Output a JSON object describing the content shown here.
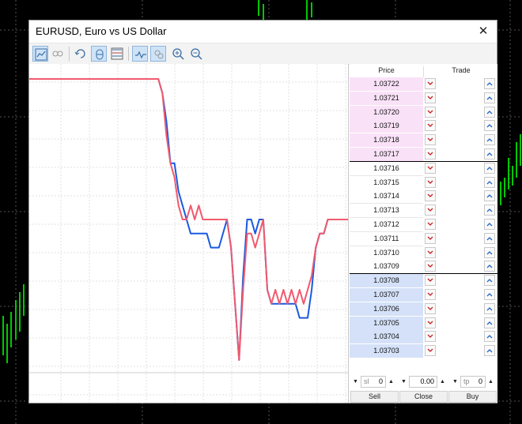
{
  "window": {
    "title": "EURUSD, Euro vs US Dollar",
    "close_glyph": "✕"
  },
  "toolbar": {
    "buttons": [
      {
        "name": "chart-icon",
        "active": true
      },
      {
        "name": "one-click-trading-icon",
        "active": false
      },
      {
        "name": "refresh-icon",
        "active": false
      },
      {
        "name": "auto-scroll-icon",
        "active": true
      },
      {
        "name": "depth-of-market-icon",
        "active": false
      },
      {
        "name": "tick-chart-icon",
        "active": true
      },
      {
        "name": "link-icon",
        "active": true
      },
      {
        "name": "zoom-in-icon",
        "active": false
      },
      {
        "name": "zoom-out-icon",
        "active": false
      }
    ]
  },
  "ladder": {
    "headers": {
      "price": "Price",
      "trade": "Trade"
    },
    "rows": [
      {
        "price": "1.03722",
        "side": "ask"
      },
      {
        "price": "1.03721",
        "side": "ask"
      },
      {
        "price": "1.03720",
        "side": "ask"
      },
      {
        "price": "1.03719",
        "side": "ask"
      },
      {
        "price": "1.03718",
        "side": "ask"
      },
      {
        "price": "1.03717",
        "side": "ask"
      },
      {
        "price": "1.03716",
        "side": "mid"
      },
      {
        "price": "1.03715",
        "side": "mid"
      },
      {
        "price": "1.03714",
        "side": "mid"
      },
      {
        "price": "1.03713",
        "side": "mid"
      },
      {
        "price": "1.03712",
        "side": "mid"
      },
      {
        "price": "1.03711",
        "side": "mid"
      },
      {
        "price": "1.03710",
        "side": "mid"
      },
      {
        "price": "1.03709",
        "side": "mid"
      },
      {
        "price": "1.03708",
        "side": "bid"
      },
      {
        "price": "1.03707",
        "side": "bid"
      },
      {
        "price": "1.03706",
        "side": "bid"
      },
      {
        "price": "1.03705",
        "side": "bid"
      },
      {
        "price": "1.03704",
        "side": "bid"
      },
      {
        "price": "1.03703",
        "side": "bid"
      }
    ]
  },
  "order": {
    "sl_label": "sl",
    "sl_value": "0",
    "volume_value": "0.00",
    "tp_label": "tp",
    "tp_value": "0",
    "sell_label": "Sell",
    "close_label": "Close",
    "buy_label": "Buy"
  },
  "colors": {
    "ask_bg": "#f9e1f7",
    "bid_bg": "#d4e1f8",
    "ask_line": "#f05a6e",
    "bid_line": "#1a5ae0",
    "dn_arrow": "#c81e1e",
    "up_arrow": "#1e64c8"
  },
  "chart_data": {
    "type": "line",
    "series": [
      {
        "values": [
          1.03722,
          1.03722,
          1.03722,
          1.03722,
          1.03722,
          1.03722,
          1.03722,
          1.03722,
          1.03722,
          1.03722,
          1.03722,
          1.03722,
          1.03722,
          1.03722,
          1.03722,
          1.03722,
          1.03722,
          1.03722,
          1.03722,
          1.03722,
          1.03722,
          1.03722,
          1.03722,
          1.03722,
          1.03722,
          1.03722,
          1.03722,
          1.03722,
          1.03722,
          1.03722,
          1.03722,
          1.03722,
          1.03722,
          1.03721,
          1.03719,
          1.03716,
          1.03716,
          1.03714,
          1.03713,
          1.03712,
          1.03711,
          1.03711,
          1.03711,
          1.03711,
          1.03711,
          1.0371,
          1.0371,
          1.0371,
          1.03711,
          1.03712,
          1.0371,
          1.03706,
          1.03702,
          1.03708,
          1.03712,
          1.03712,
          1.03711,
          1.03712,
          1.03712,
          1.03707,
          1.03706,
          1.03706,
          1.03706,
          1.03706,
          1.03706,
          1.03706,
          1.03706,
          1.03705,
          1.03705,
          1.03705,
          1.03707,
          1.0371,
          1.03711,
          1.03711,
          1.03712,
          1.03712,
          1.03712,
          1.03712,
          1.03712,
          1.03712
        ]
      },
      {
        "values": [
          1.03722,
          1.03722,
          1.03722,
          1.03722,
          1.03722,
          1.03722,
          1.03722,
          1.03722,
          1.03722,
          1.03722,
          1.03722,
          1.03722,
          1.03722,
          1.03722,
          1.03722,
          1.03722,
          1.03722,
          1.03722,
          1.03722,
          1.03722,
          1.03722,
          1.03722,
          1.03722,
          1.03722,
          1.03722,
          1.03722,
          1.03722,
          1.03722,
          1.03722,
          1.03722,
          1.03722,
          1.03722,
          1.03722,
          1.03721,
          1.03718,
          1.03716,
          1.03715,
          1.03713,
          1.03712,
          1.03712,
          1.03713,
          1.03712,
          1.03713,
          1.03712,
          1.03712,
          1.03712,
          1.03712,
          1.03712,
          1.03712,
          1.03712,
          1.0371,
          1.03706,
          1.03702,
          1.03707,
          1.03711,
          1.03711,
          1.0371,
          1.03711,
          1.03712,
          1.03707,
          1.03706,
          1.03707,
          1.03706,
          1.03707,
          1.03706,
          1.03707,
          1.03706,
          1.03707,
          1.03706,
          1.03707,
          1.03708,
          1.0371,
          1.03711,
          1.03711,
          1.03712,
          1.03712,
          1.03712,
          1.03712,
          1.03712,
          1.03712
        ]
      }
    ],
    "ylim": [
      1.037,
      1.03724
    ],
    "grid": true
  }
}
